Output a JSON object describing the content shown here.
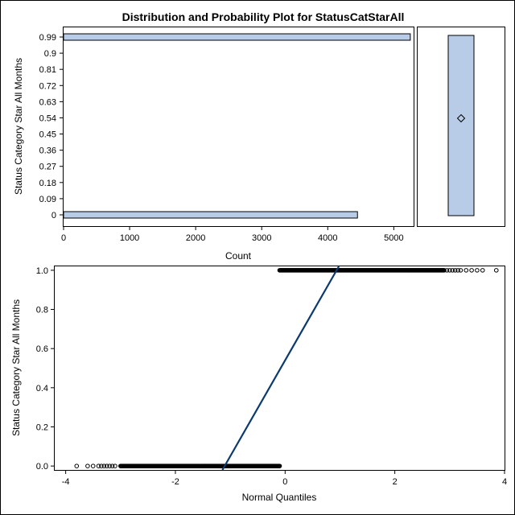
{
  "chart_data": [
    {
      "type": "bar",
      "orientation": "horizontal",
      "title": "Distribution and Probability Plot for StatusCatStarAll",
      "xlabel": "Count",
      "ylabel": "Status Category Star All Months",
      "xlim": [
        0,
        5300
      ],
      "x_ticks": [
        "0",
        "1000",
        "2000",
        "3000",
        "4000",
        "5000"
      ],
      "y_ticks": [
        "0.99",
        "0.9",
        "0.81",
        "0.72",
        "0.63",
        "0.54",
        "0.45",
        "0.36",
        "0.27",
        "0.18",
        "0.09",
        "0"
      ],
      "categories": [
        "0.99",
        "0"
      ],
      "values": [
        5250,
        4450
      ],
      "bar_color": "#b8cce8"
    },
    {
      "type": "box",
      "min": 0,
      "q1": 0,
      "median": 1,
      "q3": 1,
      "max": 1,
      "mean": 0.54,
      "fill_color": "#b8cce8"
    },
    {
      "type": "scatter",
      "xlabel": "Normal Quantiles",
      "ylabel": "Status Category Star All Months",
      "xlim": [
        -4.2,
        4.0
      ],
      "ylim": [
        -0.02,
        1.02
      ],
      "x_ticks": [
        "-4",
        "-2",
        "0",
        "2",
        "4"
      ],
      "y_ticks": [
        "0.0",
        "0.2",
        "0.4",
        "0.6",
        "0.8",
        "1.0"
      ],
      "zero_group": {
        "y": 0,
        "dense_x_range": [
          -3.0,
          -0.1
        ],
        "sparse_x": [
          -3.8,
          -3.6,
          -3.5,
          -3.4,
          -3.35,
          -3.3,
          -3.25,
          -3.2,
          -3.15,
          -3.1
        ]
      },
      "one_group": {
        "y": 1,
        "dense_x_range": [
          -0.1,
          2.9
        ],
        "sparse_x": [
          2.95,
          3.0,
          3.05,
          3.1,
          3.15,
          3.2,
          3.3,
          3.4,
          3.5,
          3.6,
          3.85
        ]
      },
      "reference_line": {
        "intercept": 0.54,
        "slope": 0.49,
        "color": "#0b3a6e"
      }
    }
  ]
}
